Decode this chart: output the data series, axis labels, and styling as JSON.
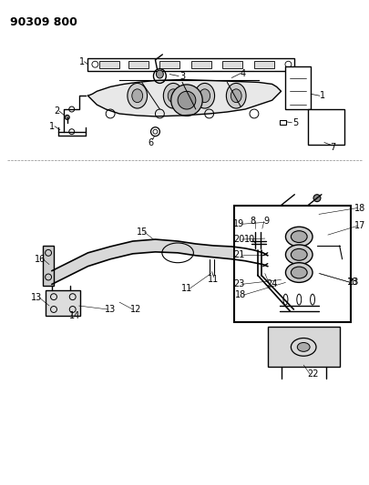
{
  "title": "90309 800",
  "bg_color": "#ffffff",
  "line_color": "#000000",
  "title_fontsize": 9,
  "label_fontsize": 7,
  "fig_width": 4.06,
  "fig_height": 5.33,
  "dpi": 100
}
